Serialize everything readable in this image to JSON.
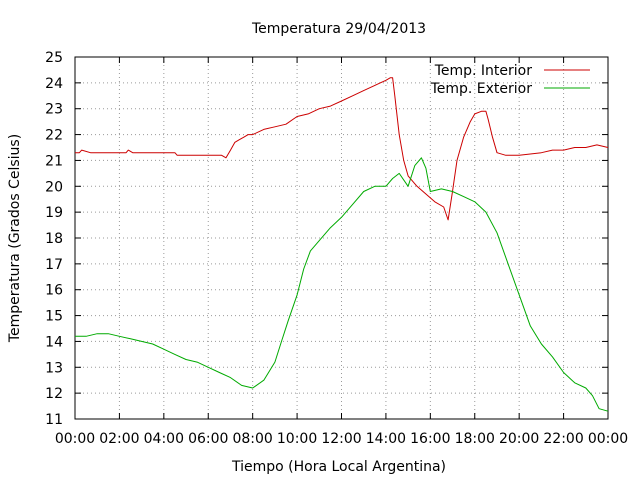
{
  "chart_data": {
    "type": "line",
    "title": "Temperatura 29/04/2013",
    "xlabel": "Tiempo (Hora Local Argentina)",
    "ylabel": "Temperatura (Grados Celsius)",
    "xlim": [
      0,
      24
    ],
    "ylim": [
      11,
      25
    ],
    "x_ticks": [
      0,
      2,
      4,
      6,
      8,
      10,
      12,
      14,
      16,
      18,
      20,
      22,
      24
    ],
    "x_tick_labels": [
      "00:00",
      "02:00",
      "04:00",
      "06:00",
      "08:00",
      "10:00",
      "12:00",
      "14:00",
      "16:00",
      "18:00",
      "20:00",
      "22:00",
      "00:00"
    ],
    "y_ticks": [
      11,
      12,
      13,
      14,
      15,
      16,
      17,
      18,
      19,
      20,
      21,
      22,
      23,
      24,
      25
    ],
    "y_tick_labels": [
      "11",
      "12",
      "13",
      "14",
      "15",
      "16",
      "17",
      "18",
      "19",
      "20",
      "21",
      "22",
      "23",
      "24",
      "25"
    ],
    "grid": true,
    "legend_position": "top-right",
    "series": [
      {
        "name": "Temp. Interior",
        "color": "#cc0000",
        "x": [
          0,
          0.2,
          0.3,
          0.7,
          2.3,
          2.4,
          2.6,
          4.5,
          4.6,
          6.6,
          6.8,
          7.0,
          7.2,
          7.4,
          7.6,
          7.8,
          8.0,
          8.5,
          9.0,
          9.5,
          10.0,
          10.5,
          11.0,
          11.5,
          12.0,
          12.5,
          13.0,
          13.5,
          14.0,
          14.2,
          14.3,
          14.4,
          14.6,
          14.8,
          15.0,
          15.4,
          15.8,
          16.2,
          16.6,
          16.8,
          17.0,
          17.2,
          17.5,
          17.8,
          18.0,
          18.3,
          18.5,
          18.6,
          18.8,
          19.0,
          19.4,
          20.0,
          21.0,
          21.5,
          22.0,
          22.5,
          23.0,
          23.5,
          24.0
        ],
        "y": [
          21.3,
          21.3,
          21.4,
          21.3,
          21.3,
          21.4,
          21.3,
          21.3,
          21.2,
          21.2,
          21.1,
          21.4,
          21.7,
          21.8,
          21.9,
          22.0,
          22.0,
          22.2,
          22.3,
          22.4,
          22.7,
          22.8,
          23.0,
          23.1,
          23.3,
          23.5,
          23.7,
          23.9,
          24.1,
          24.2,
          24.2,
          23.5,
          22.0,
          21.0,
          20.4,
          20.0,
          19.7,
          19.4,
          19.2,
          18.7,
          19.8,
          21.0,
          21.9,
          22.5,
          22.8,
          22.9,
          22.9,
          22.6,
          21.9,
          21.3,
          21.2,
          21.2,
          21.3,
          21.4,
          21.4,
          21.5,
          21.5,
          21.6,
          21.5
        ]
      },
      {
        "name": "Temp. Exterior",
        "color": "#00aa00",
        "x": [
          0,
          0.5,
          1.0,
          1.5,
          2.0,
          2.5,
          3.0,
          3.5,
          4.0,
          4.5,
          5.0,
          5.5,
          6.0,
          6.5,
          7.0,
          7.5,
          8.0,
          8.5,
          9.0,
          9.3,
          9.6,
          10.0,
          10.3,
          10.6,
          11.0,
          11.5,
          12.0,
          12.5,
          13.0,
          13.5,
          14.0,
          14.3,
          14.6,
          15.0,
          15.3,
          15.6,
          15.8,
          16.0,
          16.5,
          17.0,
          17.5,
          18.0,
          18.5,
          19.0,
          19.5,
          20.0,
          20.5,
          21.0,
          21.5,
          22.0,
          22.5,
          23.0,
          23.3,
          23.6,
          24.0
        ],
        "y": [
          14.2,
          14.2,
          14.3,
          14.3,
          14.2,
          14.1,
          14.0,
          13.9,
          13.7,
          13.5,
          13.3,
          13.2,
          13.0,
          12.8,
          12.6,
          12.3,
          12.2,
          12.5,
          13.2,
          14.0,
          14.8,
          15.8,
          16.8,
          17.5,
          17.9,
          18.4,
          18.8,
          19.3,
          19.8,
          20.0,
          20.0,
          20.3,
          20.5,
          20.0,
          20.8,
          21.1,
          20.7,
          19.8,
          19.9,
          19.8,
          19.6,
          19.4,
          19.0,
          18.2,
          17.0,
          15.8,
          14.6,
          13.9,
          13.4,
          12.8,
          12.4,
          12.2,
          11.9,
          11.4,
          11.3
        ]
      }
    ]
  }
}
